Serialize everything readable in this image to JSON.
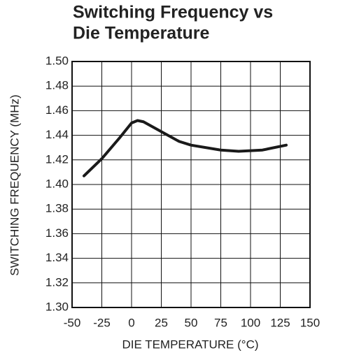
{
  "chart_data": {
    "type": "line",
    "title": [
      "Switching Frequency vs",
      "Die Temperature"
    ],
    "x_label": "DIE TEMPERATURE (°C)",
    "y_label": "SWITCHING FREQUENCY (MHz)",
    "x": [
      -40,
      -25,
      -10,
      0,
      5,
      10,
      25,
      40,
      50,
      75,
      90,
      110,
      130
    ],
    "series": [
      {
        "color": "#1a1a1a",
        "values": [
          1.407,
          1.421,
          1.438,
          1.45,
          1.452,
          1.451,
          1.443,
          1.435,
          1.432,
          1.428,
          1.427,
          1.428,
          1.432
        ]
      }
    ],
    "xlim": [
      -50,
      150
    ],
    "xticks": [
      -50,
      -25,
      0,
      25,
      50,
      75,
      100,
      125,
      150
    ],
    "ylim": [
      1.3,
      1.5
    ],
    "yticks": [
      {
        "value": 1.3,
        "label": "1.30"
      },
      1.32,
      1.34,
      1.36,
      1.38,
      {
        "value": 1.4,
        "label": "1.40"
      },
      1.42,
      1.44,
      1.46,
      1.48,
      {
        "value": 1.5,
        "label": "1.50"
      }
    ],
    "grid": true
  }
}
